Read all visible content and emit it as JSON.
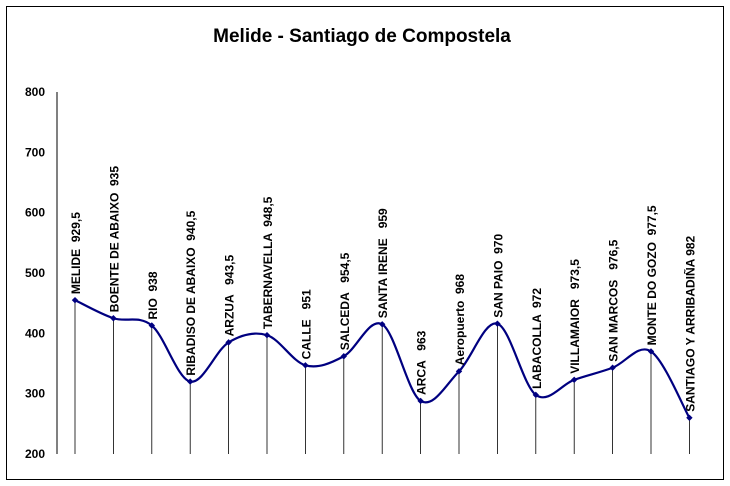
{
  "chart_data": {
    "type": "line",
    "title": "Melide - Santiago de Compostela",
    "xlabel": "",
    "ylabel": "",
    "ylim": [
      200,
      800
    ],
    "yticks": [
      800,
      700,
      600,
      500,
      400,
      300,
      200
    ],
    "grid": "vertical drop lines at each point",
    "series_color": "#000080",
    "points": [
      {
        "label": "MELIDE  929,5",
        "value": 455
      },
      {
        "label": "BOENTE DE ABAIXO  935",
        "value": 425
      },
      {
        "label": "RIO  938",
        "value": 413
      },
      {
        "label": "RIBADISO DE ABAIXO  940,5",
        "value": 320
      },
      {
        "label": "ARZUA   943,5",
        "value": 385
      },
      {
        "label": "TABERNAVELLA  948,5",
        "value": 397
      },
      {
        "label": "CALLE   951",
        "value": 347
      },
      {
        "label": "SALCEDA   954,5",
        "value": 362
      },
      {
        "label": "SANTA IRENE   959",
        "value": 415
      },
      {
        "label": "ARCA   963",
        "value": 288
      },
      {
        "label": "Aeropuerto  968",
        "value": 337
      },
      {
        "label": "SAN PAIO  970",
        "value": 416
      },
      {
        "label": "LABACOLLA  972",
        "value": 298
      },
      {
        "label": "VILLAMAIOR   973,5",
        "value": 323
      },
      {
        "label": "SAN MARCOS   976,5",
        "value": 343
      },
      {
        "label": "MONTE DO GOZO  977,5",
        "value": 370
      },
      {
        "label": "SANTIAGO Y ARRIBADIÑA 982",
        "value": 260
      }
    ]
  }
}
